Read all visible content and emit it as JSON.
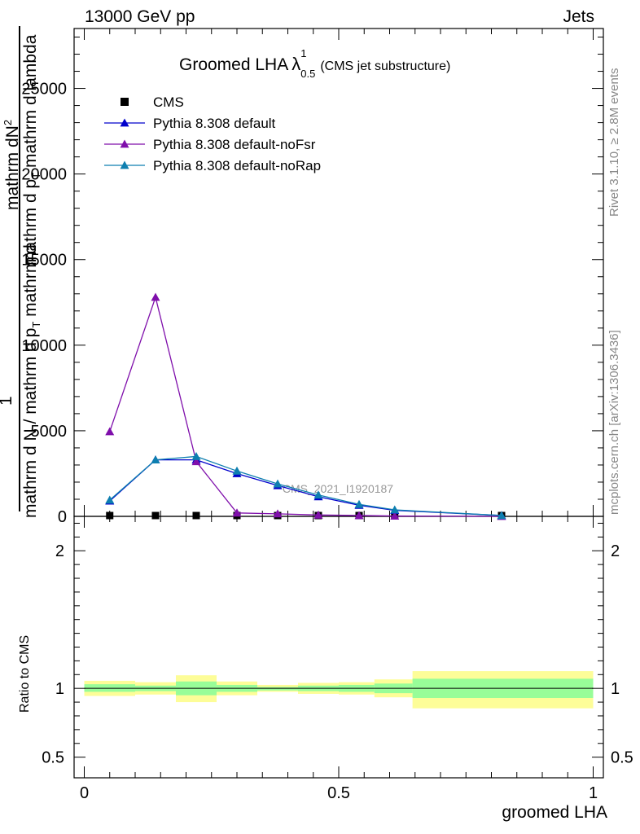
{
  "header": {
    "left": "13000 GeV pp",
    "right": "Jets"
  },
  "side": {
    "rivet": "Rivet 3.1.10, ≥ 2.8M events",
    "mcplots": "mcplots.cern.ch [arXiv:1306.3436]"
  },
  "chart_data": [
    {
      "type": "line",
      "title_main": "Groomed LHA",
      "title_lambda": "λ",
      "title_sup": "1",
      "title_sub": "0.5",
      "subtitle": "(CMS jet substructure)",
      "watermark": "CMS_2021_I1920187",
      "ylabel_top": "1",
      "ylabel_num": "mathrm d",
      "ylabel_num2": "N",
      "ylabel_sup": "2",
      "ylabel_den": "mathrm d p",
      "ylabel_den_sub": "T",
      "ylabel_den2": " mathrm d lambda",
      "ylabel_bottom": "mathrm d N / mathrm d p",
      "ylabel_bottom_sub": "T",
      "ylabel_bottom2": " mathrm d",
      "ylim": [
        0,
        28500
      ],
      "xlim": [
        -0.02,
        1.02
      ],
      "yticks": [
        0,
        5000,
        10000,
        15000,
        20000,
        25000
      ],
      "ytick_labels": [
        "0",
        "5000",
        "10000",
        "15000",
        "20000",
        "25000"
      ],
      "legend_position": "top-left",
      "series": [
        {
          "name": "CMS",
          "color": "#000000",
          "marker": "square",
          "x": [
            0.05,
            0.14,
            0.22,
            0.3,
            0.38,
            0.46,
            0.54,
            0.61,
            0.82
          ],
          "values": [
            0,
            0,
            0,
            0,
            0,
            0,
            0,
            0,
            0
          ]
        },
        {
          "name": "Pythia 8.308 default",
          "color": "#0000cc",
          "marker": "triangle",
          "x": [
            0.05,
            0.14,
            0.22,
            0.3,
            0.38,
            0.46,
            0.54,
            0.61,
            0.82
          ],
          "values": [
            900,
            3300,
            3300,
            2500,
            1800,
            1150,
            650,
            350,
            50
          ]
        },
        {
          "name": "Pythia 8.308 default-noFsr",
          "color": "#7f0fab",
          "marker": "triangle",
          "x": [
            0.05,
            0.14,
            0.22,
            0.3,
            0.38,
            0.46,
            0.54,
            0.61,
            0.82
          ],
          "values": [
            4950,
            12800,
            3200,
            200,
            150,
            80,
            50,
            20,
            0
          ]
        },
        {
          "name": "Pythia 8.308 default-noRap",
          "color": "#0e7fb0",
          "marker": "triangle",
          "x": [
            0.05,
            0.14,
            0.22,
            0.3,
            0.38,
            0.46,
            0.54,
            0.61,
            0.82
          ],
          "values": [
            950,
            3300,
            3500,
            2650,
            1900,
            1250,
            700,
            380,
            50
          ]
        }
      ]
    },
    {
      "type": "area",
      "ylabel": "Ratio to CMS",
      "xlabel": "groomed LHA",
      "ylim": [
        0.35,
        2.25
      ],
      "xlim": [
        -0.02,
        1.02
      ],
      "yticks": [
        0.5,
        1,
        2
      ],
      "ytick_labels": [
        "0.5",
        "1",
        "2"
      ],
      "xticks": [
        0,
        0.5,
        1
      ],
      "xtick_labels": [
        "0",
        "0.5",
        "1"
      ],
      "bands": [
        {
          "x0": 0.0,
          "x1": 0.1,
          "yellow_lo": 0.945,
          "yellow_hi": 1.055,
          "green_lo": 0.975,
          "green_hi": 1.03
        },
        {
          "x0": 0.1,
          "x1": 0.18,
          "yellow_lo": 0.955,
          "yellow_hi": 1.045,
          "green_lo": 0.98,
          "green_hi": 1.02
        },
        {
          "x0": 0.18,
          "x1": 0.26,
          "yellow_lo": 0.9,
          "yellow_hi": 1.095,
          "green_lo": 0.95,
          "green_hi": 1.05
        },
        {
          "x0": 0.26,
          "x1": 0.34,
          "yellow_lo": 0.95,
          "yellow_hi": 1.05,
          "green_lo": 0.975,
          "green_hi": 1.025
        },
        {
          "x0": 0.34,
          "x1": 0.42,
          "yellow_lo": 0.975,
          "yellow_hi": 1.025,
          "green_lo": 0.985,
          "green_hi": 1.01
        },
        {
          "x0": 0.42,
          "x1": 0.5,
          "yellow_lo": 0.96,
          "yellow_hi": 1.04,
          "green_lo": 0.98,
          "green_hi": 1.02
        },
        {
          "x0": 0.5,
          "x1": 0.57,
          "yellow_lo": 0.955,
          "yellow_hi": 1.045,
          "green_lo": 0.975,
          "green_hi": 1.025
        },
        {
          "x0": 0.57,
          "x1": 0.645,
          "yellow_lo": 0.935,
          "yellow_hi": 1.065,
          "green_lo": 0.965,
          "green_hi": 1.035
        },
        {
          "x0": 0.645,
          "x1": 1.0,
          "yellow_lo": 0.855,
          "yellow_hi": 1.125,
          "green_lo": 0.93,
          "green_hi": 1.07
        }
      ]
    }
  ]
}
